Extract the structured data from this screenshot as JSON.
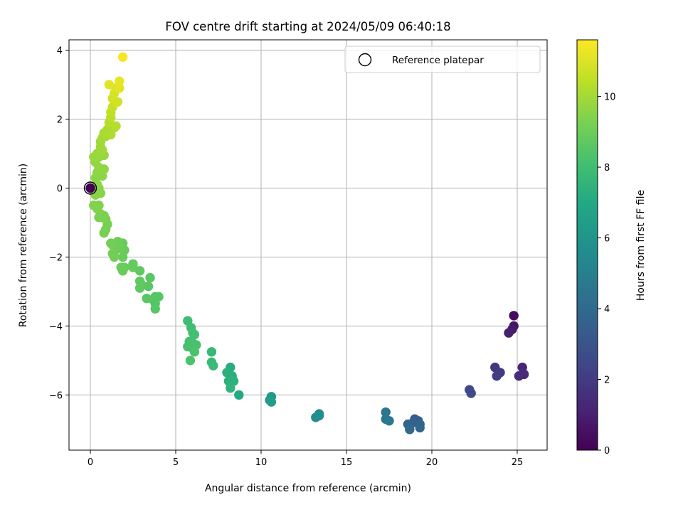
{
  "chart_data": {
    "type": "scatter",
    "title": "FOV centre drift starting at 2024/05/09 06:40:18",
    "xlabel": "Angular distance from reference (arcmin)",
    "ylabel": "Rotation from reference (arcmin)",
    "xlim": [
      -1.25,
      26.75
    ],
    "ylim": [
      -7.6,
      4.3
    ],
    "xticks": [
      0,
      5,
      10,
      15,
      20,
      25
    ],
    "yticks": [
      -6,
      -4,
      -2,
      0,
      2,
      4
    ],
    "grid": true,
    "legend": {
      "location": "top-right",
      "entries": [
        "Reference platepar"
      ]
    },
    "reference_point": {
      "x": 0,
      "y": 0
    },
    "colorbar": {
      "label": "Hours from first FF file",
      "range": [
        0,
        11.6
      ],
      "ticks": [
        0,
        2,
        4,
        6,
        8,
        10
      ],
      "colormap": "viridis"
    },
    "points": [
      {
        "x": 24.8,
        "y": -3.7,
        "c": 0.3
      },
      {
        "x": 24.8,
        "y": -4.0,
        "c": 0.6
      },
      {
        "x": 24.7,
        "y": -4.1,
        "c": 0.8
      },
      {
        "x": 24.5,
        "y": -4.2,
        "c": 1.0
      },
      {
        "x": 25.3,
        "y": -5.2,
        "c": 1.2
      },
      {
        "x": 25.4,
        "y": -5.4,
        "c": 1.4
      },
      {
        "x": 25.1,
        "y": -5.45,
        "c": 1.5
      },
      {
        "x": 23.7,
        "y": -5.2,
        "c": 1.8
      },
      {
        "x": 24.0,
        "y": -5.35,
        "c": 2.0
      },
      {
        "x": 23.8,
        "y": -5.45,
        "c": 2.1
      },
      {
        "x": 22.2,
        "y": -5.85,
        "c": 2.5
      },
      {
        "x": 22.3,
        "y": -5.95,
        "c": 2.6
      },
      {
        "x": 19.0,
        "y": -6.7,
        "c": 3.3
      },
      {
        "x": 19.2,
        "y": -6.75,
        "c": 3.4
      },
      {
        "x": 18.9,
        "y": -6.8,
        "c": 3.5
      },
      {
        "x": 19.3,
        "y": -6.85,
        "c": 3.6
      },
      {
        "x": 18.6,
        "y": -6.85,
        "c": 3.7
      },
      {
        "x": 19.3,
        "y": -6.95,
        "c": 3.8
      },
      {
        "x": 18.7,
        "y": -7.0,
        "c": 3.9
      },
      {
        "x": 17.3,
        "y": -6.5,
        "c": 4.5
      },
      {
        "x": 17.3,
        "y": -6.7,
        "c": 4.6
      },
      {
        "x": 17.5,
        "y": -6.75,
        "c": 4.7
      },
      {
        "x": 13.4,
        "y": -6.55,
        "c": 5.5
      },
      {
        "x": 13.2,
        "y": -6.65,
        "c": 5.6
      },
      {
        "x": 13.4,
        "y": -6.6,
        "c": 5.7
      },
      {
        "x": 10.6,
        "y": -6.05,
        "c": 6.2
      },
      {
        "x": 10.5,
        "y": -6.15,
        "c": 6.3
      },
      {
        "x": 10.6,
        "y": -6.2,
        "c": 6.4
      },
      {
        "x": 8.7,
        "y": -6.0,
        "c": 7.0
      },
      {
        "x": 8.2,
        "y": -5.2,
        "c": 7.2
      },
      {
        "x": 8.0,
        "y": -5.35,
        "c": 7.3
      },
      {
        "x": 8.3,
        "y": -5.45,
        "c": 7.3
      },
      {
        "x": 8.4,
        "y": -5.6,
        "c": 7.4
      },
      {
        "x": 8.1,
        "y": -5.6,
        "c": 7.4
      },
      {
        "x": 8.2,
        "y": -5.8,
        "c": 7.5
      },
      {
        "x": 7.1,
        "y": -4.75,
        "c": 7.7
      },
      {
        "x": 7.1,
        "y": -5.05,
        "c": 7.8
      },
      {
        "x": 7.2,
        "y": -5.15,
        "c": 7.8
      },
      {
        "x": 5.7,
        "y": -3.85,
        "c": 8.0
      },
      {
        "x": 5.9,
        "y": -4.05,
        "c": 8.0
      },
      {
        "x": 6.0,
        "y": -4.2,
        "c": 8.1
      },
      {
        "x": 6.1,
        "y": -4.25,
        "c": 8.1
      },
      {
        "x": 5.8,
        "y": -4.45,
        "c": 8.1
      },
      {
        "x": 6.0,
        "y": -4.5,
        "c": 8.2
      },
      {
        "x": 6.2,
        "y": -4.55,
        "c": 8.2
      },
      {
        "x": 5.7,
        "y": -4.6,
        "c": 8.2
      },
      {
        "x": 6.0,
        "y": -4.65,
        "c": 8.2
      },
      {
        "x": 6.1,
        "y": -4.75,
        "c": 8.3
      },
      {
        "x": 5.85,
        "y": -5.0,
        "c": 8.3
      },
      {
        "x": 3.8,
        "y": -3.15,
        "c": 8.5
      },
      {
        "x": 4.0,
        "y": -3.15,
        "c": 8.5
      },
      {
        "x": 3.7,
        "y": -3.25,
        "c": 8.5
      },
      {
        "x": 3.8,
        "y": -3.35,
        "c": 8.5
      },
      {
        "x": 3.8,
        "y": -3.5,
        "c": 8.5
      },
      {
        "x": 3.5,
        "y": -2.6,
        "c": 8.6
      },
      {
        "x": 3.3,
        "y": -3.2,
        "c": 8.6
      },
      {
        "x": 3.4,
        "y": -2.85,
        "c": 8.6
      },
      {
        "x": 2.9,
        "y": -2.4,
        "c": 8.7
      },
      {
        "x": 2.9,
        "y": -2.7,
        "c": 8.7
      },
      {
        "x": 3.0,
        "y": -2.8,
        "c": 8.7
      },
      {
        "x": 2.9,
        "y": -2.9,
        "c": 8.7
      },
      {
        "x": 2.5,
        "y": -2.2,
        "c": 8.8
      },
      {
        "x": 2.5,
        "y": -2.3,
        "c": 8.8
      },
      {
        "x": 1.9,
        "y": -1.6,
        "c": 8.9
      },
      {
        "x": 2.0,
        "y": -1.8,
        "c": 8.9
      },
      {
        "x": 1.9,
        "y": -2.0,
        "c": 8.9
      },
      {
        "x": 1.8,
        "y": -2.3,
        "c": 8.9
      },
      {
        "x": 2.0,
        "y": -2.3,
        "c": 8.9
      },
      {
        "x": 1.9,
        "y": -2.4,
        "c": 8.9
      },
      {
        "x": 1.6,
        "y": -1.55,
        "c": 9.0
      },
      {
        "x": 1.5,
        "y": -1.65,
        "c": 9.0
      },
      {
        "x": 1.7,
        "y": -1.75,
        "c": 9.0
      },
      {
        "x": 1.4,
        "y": -1.85,
        "c": 9.0
      },
      {
        "x": 1.3,
        "y": -1.65,
        "c": 9.1
      },
      {
        "x": 1.4,
        "y": -2.0,
        "c": 9.1
      },
      {
        "x": 1.3,
        "y": -1.9,
        "c": 9.1
      },
      {
        "x": 1.2,
        "y": -1.6,
        "c": 9.1
      },
      {
        "x": 1.0,
        "y": -1.05,
        "c": 9.2
      },
      {
        "x": 0.9,
        "y": -1.2,
        "c": 9.2
      },
      {
        "x": 0.8,
        "y": -1.3,
        "c": 9.2
      },
      {
        "x": 0.9,
        "y": -0.9,
        "c": 9.3
      },
      {
        "x": 0.7,
        "y": -0.85,
        "c": 9.3
      },
      {
        "x": 0.6,
        "y": -0.75,
        "c": 9.3
      },
      {
        "x": 0.5,
        "y": -0.85,
        "c": 9.3
      },
      {
        "x": 0.8,
        "y": -0.8,
        "c": 9.3
      },
      {
        "x": 0.4,
        "y": -0.6,
        "c": 9.4
      },
      {
        "x": 0.5,
        "y": -0.5,
        "c": 9.4
      },
      {
        "x": 0.2,
        "y": -0.5,
        "c": 9.4
      },
      {
        "x": 0.3,
        "y": -0.2,
        "c": 9.5
      },
      {
        "x": 0.6,
        "y": -0.15,
        "c": 9.5
      },
      {
        "x": 0.5,
        "y": 0.0,
        "c": 9.5
      },
      {
        "x": 0.4,
        "y": 0.1,
        "c": 9.6
      },
      {
        "x": 0.3,
        "y": 0.3,
        "c": 9.6
      },
      {
        "x": 0.4,
        "y": 0.45,
        "c": 9.6
      },
      {
        "x": 0.7,
        "y": 0.35,
        "c": 9.6
      },
      {
        "x": 0.8,
        "y": 0.55,
        "c": 9.7
      },
      {
        "x": 0.5,
        "y": 0.6,
        "c": 9.7
      },
      {
        "x": 0.3,
        "y": 0.75,
        "c": 9.7
      },
      {
        "x": 0.2,
        "y": 0.9,
        "c": 9.8
      },
      {
        "x": 0.5,
        "y": 0.9,
        "c": 9.8
      },
      {
        "x": 0.4,
        "y": 1.0,
        "c": 9.8
      },
      {
        "x": 0.8,
        "y": 0.95,
        "c": 9.8
      },
      {
        "x": 0.7,
        "y": 1.1,
        "c": 9.9
      },
      {
        "x": 0.6,
        "y": 1.2,
        "c": 9.9
      },
      {
        "x": 0.6,
        "y": 1.35,
        "c": 9.9
      },
      {
        "x": 0.7,
        "y": 1.45,
        "c": 10.0
      },
      {
        "x": 0.9,
        "y": 1.5,
        "c": 10.0
      },
      {
        "x": 0.8,
        "y": 1.6,
        "c": 10.1
      },
      {
        "x": 1.0,
        "y": 1.7,
        "c": 10.1
      },
      {
        "x": 1.2,
        "y": 1.55,
        "c": 10.2
      },
      {
        "x": 1.4,
        "y": 1.75,
        "c": 10.2
      },
      {
        "x": 1.5,
        "y": 1.8,
        "c": 10.3
      },
      {
        "x": 1.1,
        "y": 1.9,
        "c": 10.3
      },
      {
        "x": 1.2,
        "y": 2.05,
        "c": 10.4
      },
      {
        "x": 1.2,
        "y": 2.2,
        "c": 10.5
      },
      {
        "x": 1.3,
        "y": 2.35,
        "c": 10.6
      },
      {
        "x": 1.5,
        "y": 2.5,
        "c": 10.7
      },
      {
        "x": 1.3,
        "y": 2.6,
        "c": 10.8
      },
      {
        "x": 1.6,
        "y": 2.5,
        "c": 10.8
      },
      {
        "x": 1.4,
        "y": 2.75,
        "c": 10.9
      },
      {
        "x": 1.5,
        "y": 2.9,
        "c": 11.0
      },
      {
        "x": 1.1,
        "y": 3.0,
        "c": 11.1
      },
      {
        "x": 1.7,
        "y": 2.9,
        "c": 11.1
      },
      {
        "x": 1.7,
        "y": 3.1,
        "c": 11.2
      },
      {
        "x": 1.9,
        "y": 3.8,
        "c": 11.5
      },
      {
        "x": 0.0,
        "y": 0.0,
        "c": 0.0
      }
    ]
  }
}
